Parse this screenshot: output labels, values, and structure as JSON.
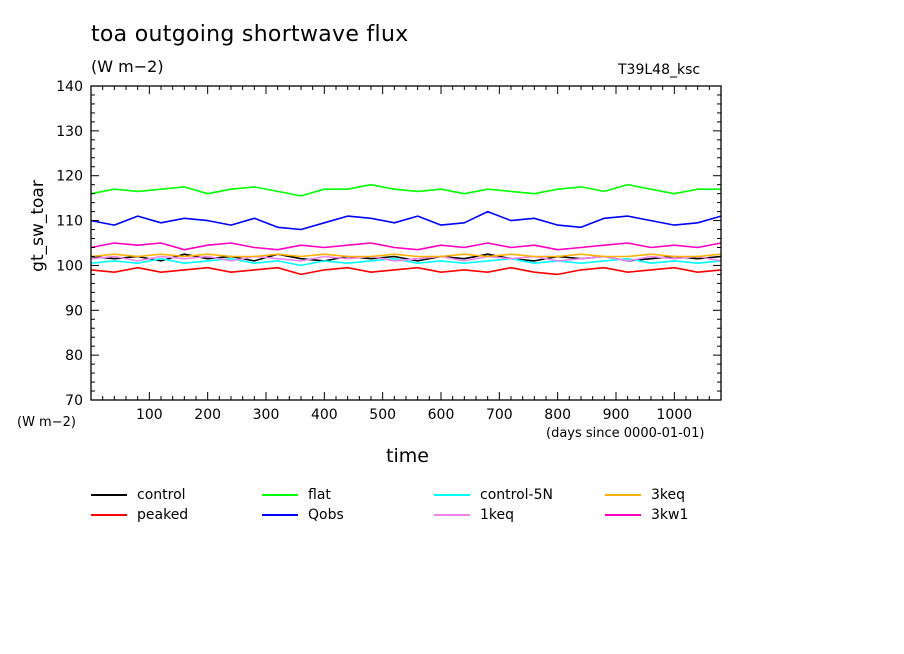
{
  "header": {
    "title": "toa outgoing shortwave flux",
    "units": "(W m−2)",
    "run_id": "T39L48_ksc"
  },
  "chart_data": {
    "type": "line",
    "title": "toa outgoing shortwave flux",
    "ylabel": "gt_sw_toar",
    "ylabel_unit": "(W m−2)",
    "xlabel": "time",
    "xlabel_unit": "(days since 0000-01-01)",
    "xlim": [
      0,
      1080
    ],
    "ylim": [
      70,
      140
    ],
    "x_ticks": [
      100,
      200,
      300,
      400,
      500,
      600,
      700,
      800,
      900,
      1000
    ],
    "y_ticks": [
      70,
      80,
      90,
      100,
      110,
      120,
      130,
      140
    ],
    "grid": false,
    "legend_position": "bottom",
    "x": [
      0,
      40,
      80,
      120,
      160,
      200,
      240,
      280,
      320,
      360,
      400,
      440,
      480,
      520,
      560,
      600,
      640,
      680,
      720,
      760,
      800,
      840,
      880,
      920,
      960,
      1000,
      1040,
      1080
    ],
    "series": [
      {
        "name": "control",
        "color": "#000000",
        "values": [
          102,
          101.5,
          102,
          101,
          102.5,
          101.5,
          102,
          101,
          102.5,
          101.5,
          101,
          102,
          101.5,
          102,
          101,
          102,
          101.5,
          102.5,
          101.5,
          101,
          102,
          101.5,
          102,
          101,
          101.5,
          102,
          101.5,
          102
        ]
      },
      {
        "name": "peaked",
        "color": "#ff0000",
        "values": [
          99,
          98.5,
          99.5,
          98.5,
          99,
          99.5,
          98.5,
          99,
          99.5,
          98,
          99,
          99.5,
          98.5,
          99,
          99.5,
          98.5,
          99,
          98.5,
          99.5,
          98.5,
          98,
          99,
          99.5,
          98.5,
          99,
          99.5,
          98.5,
          99
        ]
      },
      {
        "name": "flat",
        "color": "#00ff00",
        "values": [
          116,
          117,
          116.5,
          117,
          117.5,
          116,
          117,
          117.5,
          116.5,
          115.5,
          117,
          117,
          118,
          117,
          116.5,
          117,
          116,
          117,
          116.5,
          116,
          117,
          117.5,
          116.5,
          118,
          117,
          116,
          117,
          117
        ]
      },
      {
        "name": "Qobs",
        "color": "#0000ff",
        "values": [
          110,
          109,
          111,
          109.5,
          110.5,
          110,
          109,
          110.5,
          108.5,
          108,
          109.5,
          111,
          110.5,
          109.5,
          111,
          109,
          109.5,
          112,
          110,
          110.5,
          109,
          108.5,
          110.5,
          111,
          110,
          109,
          109.5,
          111
        ]
      },
      {
        "name": "control-5N",
        "color": "#00ffff",
        "values": [
          100.5,
          101,
          100.5,
          101.5,
          100.5,
          101,
          101.5,
          100.5,
          101,
          100,
          101,
          100.5,
          101,
          101.5,
          100.5,
          101,
          100.5,
          101,
          101.5,
          100.5,
          101,
          100.5,
          101,
          101.5,
          100.5,
          101,
          100.5,
          101
        ]
      },
      {
        "name": "1keq",
        "color": "#ee82ee",
        "values": [
          101.5,
          102,
          101,
          102,
          101.5,
          102,
          101,
          102,
          101.5,
          101,
          102,
          101.5,
          102,
          101,
          101.5,
          102,
          101,
          102,
          101.5,
          102,
          101,
          101.5,
          102,
          101,
          102,
          101.5,
          102,
          101
        ]
      },
      {
        "name": "3keq",
        "color": "#ffb000",
        "values": [
          102,
          102.5,
          102,
          102.5,
          102,
          102.5,
          102,
          102,
          102.5,
          102,
          102.5,
          102,
          102,
          102.5,
          102,
          102,
          102.5,
          102,
          102.5,
          102,
          102,
          102.5,
          102,
          102,
          102.5,
          102,
          102,
          102.5
        ]
      },
      {
        "name": "3kw1",
        "color": "#ff00c0",
        "values": [
          104,
          105,
          104.5,
          105,
          103.5,
          104.5,
          105,
          104,
          103.5,
          104.5,
          104,
          104.5,
          105,
          104,
          103.5,
          104.5,
          104,
          105,
          104,
          104.5,
          103.5,
          104,
          104.5,
          105,
          104,
          104.5,
          104,
          105
        ]
      }
    ]
  }
}
